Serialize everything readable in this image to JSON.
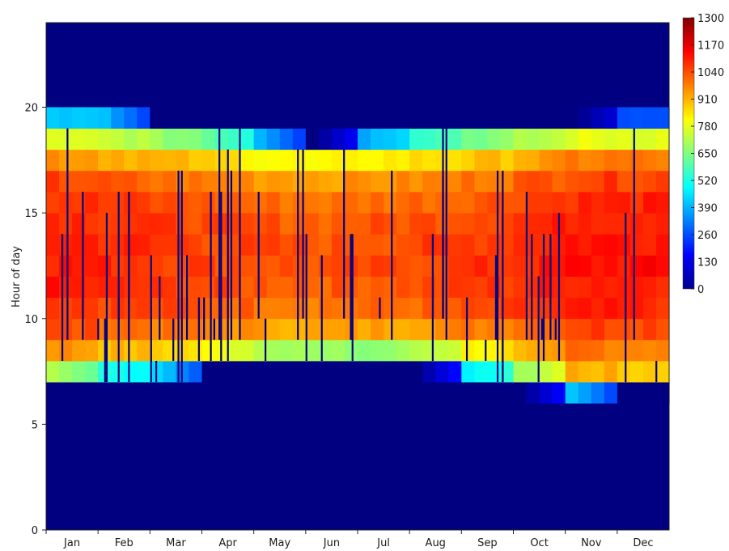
{
  "chart_data": {
    "type": "heatmap",
    "title": "",
    "xlabel": "",
    "ylabel": "Hour of day",
    "x_tick_labels": [
      "Jan",
      "Feb",
      "Mar",
      "Apr",
      "May",
      "Jun",
      "Jul",
      "Aug",
      "Sep",
      "Oct",
      "Nov",
      "Dec"
    ],
    "y_ticks": [
      0,
      5,
      10,
      15,
      20
    ],
    "ylim": [
      0,
      24
    ],
    "xlim_days": [
      1,
      365
    ],
    "colorbar": {
      "ticks": [
        0,
        130,
        260,
        390,
        520,
        650,
        780,
        910,
        1040,
        1170,
        1300
      ],
      "range": [
        0,
        1300
      ],
      "colormap": "jet"
    },
    "daylight_window": {
      "description": "non-zero values occur between these hours; columns are days of year",
      "sunrise_hour_by_month": [
        7,
        7,
        7,
        8,
        8,
        8,
        8,
        8,
        7,
        7,
        6,
        7
      ],
      "sunset_hour_by_month": [
        20,
        20,
        19,
        19,
        19,
        18,
        19,
        19,
        19,
        19,
        20,
        20
      ]
    },
    "hourly_profile_peak": 1050,
    "series": [
      {
        "hour": 6,
        "monthly_typical": [
          0,
          0,
          0,
          0,
          0,
          0,
          0,
          0,
          0,
          0,
          420,
          0
        ]
      },
      {
        "hour": 7,
        "monthly_typical": [
          700,
          520,
          450,
          0,
          0,
          0,
          0,
          0,
          460,
          680,
          920,
          880
        ]
      },
      {
        "hour": 8,
        "monthly_typical": [
          960,
          900,
          880,
          800,
          720,
          680,
          660,
          720,
          820,
          880,
          1000,
          980
        ]
      },
      {
        "hour": 9,
        "monthly_typical": [
          1040,
          1010,
          980,
          960,
          930,
          920,
          930,
          950,
          980,
          1010,
          1060,
          1060
        ]
      },
      {
        "hour": 10,
        "monthly_typical": [
          1080,
          1060,
          1040,
          1020,
          1000,
          990,
          1000,
          1010,
          1030,
          1060,
          1090,
          1090
        ]
      },
      {
        "hour": 11,
        "monthly_typical": [
          1100,
          1080,
          1060,
          1040,
          1030,
          1020,
          1030,
          1040,
          1060,
          1080,
          1110,
          1110
        ]
      },
      {
        "hour": 12,
        "monthly_typical": [
          1110,
          1090,
          1070,
          1050,
          1040,
          1030,
          1040,
          1050,
          1070,
          1090,
          1120,
          1120
        ]
      },
      {
        "hour": 13,
        "monthly_typical": [
          1110,
          1090,
          1070,
          1050,
          1040,
          1030,
          1040,
          1050,
          1070,
          1090,
          1120,
          1120
        ]
      },
      {
        "hour": 14,
        "monthly_typical": [
          1100,
          1080,
          1060,
          1040,
          1030,
          1020,
          1030,
          1040,
          1060,
          1080,
          1110,
          1110
        ]
      },
      {
        "hour": 15,
        "monthly_typical": [
          1080,
          1060,
          1040,
          1020,
          1000,
          990,
          1000,
          1010,
          1030,
          1060,
          1090,
          1090
        ]
      },
      {
        "hour": 16,
        "monthly_typical": [
          1050,
          1020,
          990,
          970,
          950,
          940,
          950,
          960,
          990,
          1020,
          1060,
          1060
        ]
      },
      {
        "hour": 17,
        "monthly_typical": [
          960,
          930,
          900,
          860,
          820,
          800,
          830,
          850,
          880,
          920,
          980,
          980
        ]
      },
      {
        "hour": 18,
        "monthly_typical": [
          760,
          740,
          680,
          620,
          400,
          0,
          380,
          560,
          640,
          700,
          780,
          780
        ]
      },
      {
        "hour": 19,
        "monthly_typical": [
          420,
          400,
          0,
          0,
          0,
          0,
          0,
          0,
          0,
          0,
          0,
          260
        ]
      }
    ],
    "outage_note": "scattered single-day columns with value 0 inside the daylight window"
  }
}
